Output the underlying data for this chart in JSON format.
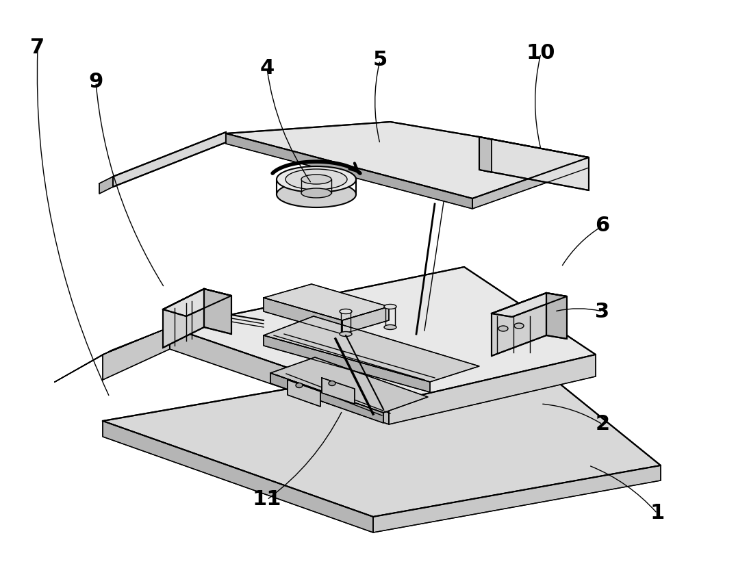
{
  "background_color": "#ffffff",
  "line_color": "#000000",
  "label_color": "#000000",
  "figsize": [
    10.94,
    8.43
  ],
  "dpi": 100,
  "label_data": [
    [
      55,
      70,
      160,
      580,
      "7"
    ],
    [
      140,
      120,
      240,
      420,
      "9"
    ],
    [
      390,
      100,
      455,
      268,
      "4"
    ],
    [
      555,
      88,
      555,
      210,
      "5"
    ],
    [
      790,
      78,
      790,
      218,
      "10"
    ],
    [
      880,
      330,
      820,
      390,
      "6"
    ],
    [
      880,
      455,
      810,
      455,
      "3"
    ],
    [
      880,
      620,
      790,
      590,
      "2"
    ],
    [
      960,
      750,
      860,
      680,
      "1"
    ],
    [
      390,
      730,
      500,
      600,
      "11"
    ]
  ]
}
